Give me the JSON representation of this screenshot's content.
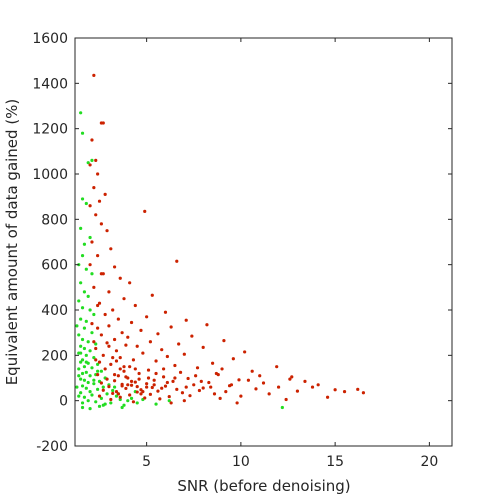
{
  "chart_data": {
    "type": "scatter",
    "title": "",
    "xlabel": "SNR (before denoising)",
    "ylabel": "Equivalent amount of data gained (%)",
    "xlim": [
      1.2,
      21.2
    ],
    "ylim": [
      -200,
      1600
    ],
    "x_ticks": [
      5,
      10,
      15,
      20
    ],
    "y_ticks": [
      -200,
      0,
      200,
      400,
      600,
      800,
      1000,
      1200,
      1400,
      1600
    ],
    "grid": false,
    "legend": "none",
    "series": [
      {
        "color": "#22dd22",
        "points": [
          [
            1.5,
            1270
          ],
          [
            1.6,
            1180
          ],
          [
            1.9,
            1050
          ],
          [
            2.1,
            1060
          ],
          [
            1.6,
            890
          ],
          [
            1.8,
            870
          ],
          [
            1.5,
            760
          ],
          [
            1.7,
            690
          ],
          [
            2.0,
            720
          ],
          [
            1.6,
            640
          ],
          [
            1.4,
            600
          ],
          [
            1.8,
            580
          ],
          [
            2.1,
            560
          ],
          [
            1.5,
            520
          ],
          [
            1.7,
            480
          ],
          [
            1.9,
            460
          ],
          [
            1.4,
            440
          ],
          [
            1.6,
            410
          ],
          [
            2.0,
            400
          ],
          [
            2.2,
            380
          ],
          [
            1.5,
            360
          ],
          [
            1.8,
            350
          ],
          [
            1.3,
            330
          ],
          [
            1.7,
            320
          ],
          [
            2.1,
            300
          ],
          [
            1.4,
            290
          ],
          [
            1.6,
            270
          ],
          [
            1.9,
            260
          ],
          [
            2.3,
            250
          ],
          [
            1.5,
            240
          ],
          [
            1.7,
            230
          ],
          [
            2.0,
            220
          ],
          [
            1.4,
            210
          ],
          [
            1.8,
            200
          ],
          [
            2.2,
            190
          ],
          [
            1.6,
            180
          ],
          [
            1.5,
            170
          ],
          [
            1.9,
            165
          ],
          [
            2.4,
            160
          ],
          [
            1.7,
            150
          ],
          [
            2.1,
            145
          ],
          [
            1.4,
            140
          ],
          [
            2.6,
            130
          ],
          [
            1.8,
            125
          ],
          [
            1.6,
            120
          ],
          [
            2.3,
            115
          ],
          [
            2.0,
            110
          ],
          [
            2.8,
            100
          ],
          [
            1.5,
            95
          ],
          [
            1.7,
            90
          ],
          [
            2.5,
            85
          ],
          [
            1.9,
            80
          ],
          [
            2.2,
            75
          ],
          [
            3.0,
            70
          ],
          [
            1.6,
            65
          ],
          [
            2.7,
            60
          ],
          [
            1.8,
            55
          ],
          [
            2.4,
            50
          ],
          [
            3.2,
            45
          ],
          [
            2.0,
            40
          ],
          [
            1.5,
            35
          ],
          [
            2.9,
            30
          ],
          [
            2.1,
            25
          ],
          [
            3.4,
            20
          ],
          [
            1.7,
            15
          ],
          [
            2.6,
            10
          ],
          [
            3.6,
            5
          ],
          [
            1.9,
            0
          ],
          [
            2.3,
            -5
          ],
          [
            3.1,
            -10
          ],
          [
            2.8,
            -15
          ],
          [
            3.8,
            -20
          ],
          [
            2.5,
            -25
          ],
          [
            1.6,
            -10
          ],
          [
            4.0,
            0
          ],
          [
            3.5,
            30
          ],
          [
            4.2,
            10
          ],
          [
            4.5,
            -10
          ],
          [
            3.3,
            60
          ],
          [
            2.2,
            90
          ],
          [
            1.4,
            110
          ],
          [
            1.3,
            60
          ],
          [
            1.4,
            20
          ],
          [
            1.6,
            -30
          ],
          [
            2.0,
            -35
          ],
          [
            4.8,
            5
          ],
          [
            5.5,
            -15
          ],
          [
            6.2,
            0
          ],
          [
            3.7,
            -30
          ],
          [
            2.4,
            130
          ],
          [
            1.8,
            170
          ],
          [
            1.5,
            210
          ],
          [
            2.7,
            -20
          ],
          [
            4.4,
            40
          ],
          [
            12.2,
            -30
          ]
        ]
      },
      {
        "color": "#cc2200",
        "points": [
          [
            2.2,
            1435
          ],
          [
            2.6,
            1225
          ],
          [
            2.7,
            1225
          ],
          [
            2.1,
            1150
          ],
          [
            2.3,
            1060
          ],
          [
            2.0,
            1040
          ],
          [
            2.4,
            1000
          ],
          [
            2.2,
            940
          ],
          [
            2.8,
            910
          ],
          [
            2.5,
            880
          ],
          [
            2.0,
            860
          ],
          [
            2.3,
            820
          ],
          [
            4.9,
            835
          ],
          [
            2.6,
            780
          ],
          [
            2.9,
            750
          ],
          [
            2.1,
            700
          ],
          [
            3.1,
            670
          ],
          [
            2.4,
            640
          ],
          [
            6.6,
            615
          ],
          [
            3.3,
            590
          ],
          [
            2.7,
            560
          ],
          [
            3.6,
            540
          ],
          [
            4.1,
            520
          ],
          [
            2.2,
            500
          ],
          [
            3.0,
            480
          ],
          [
            5.3,
            465
          ],
          [
            3.8,
            450
          ],
          [
            2.5,
            430
          ],
          [
            4.4,
            420
          ],
          [
            3.2,
            400
          ],
          [
            6.0,
            390
          ],
          [
            2.8,
            380
          ],
          [
            5.0,
            370
          ],
          [
            3.5,
            360
          ],
          [
            7.1,
            355
          ],
          [
            4.2,
            345
          ],
          [
            8.2,
            335
          ],
          [
            3.0,
            330
          ],
          [
            6.3,
            325
          ],
          [
            2.4,
            320
          ],
          [
            4.7,
            310
          ],
          [
            3.7,
            300
          ],
          [
            5.6,
            295
          ],
          [
            2.6,
            290
          ],
          [
            7.4,
            285
          ],
          [
            4.0,
            280
          ],
          [
            3.3,
            270
          ],
          [
            9.1,
            265
          ],
          [
            5.2,
            260
          ],
          [
            2.9,
            255
          ],
          [
            6.7,
            250
          ],
          [
            3.9,
            245
          ],
          [
            4.5,
            240
          ],
          [
            8.0,
            235
          ],
          [
            2.3,
            230
          ],
          [
            5.8,
            225
          ],
          [
            3.4,
            220
          ],
          [
            10.2,
            215
          ],
          [
            4.8,
            210
          ],
          [
            7.0,
            205
          ],
          [
            2.7,
            200
          ],
          [
            6.1,
            195
          ],
          [
            3.6,
            190
          ],
          [
            9.6,
            185
          ],
          [
            4.3,
            180
          ],
          [
            5.5,
            175
          ],
          [
            2.5,
            170
          ],
          [
            8.5,
            165
          ],
          [
            3.1,
            160
          ],
          [
            6.5,
            155
          ],
          [
            11.9,
            150
          ],
          [
            4.1,
            150
          ],
          [
            7.7,
            145
          ],
          [
            2.8,
            140
          ],
          [
            5.1,
            135
          ],
          [
            3.8,
            130
          ],
          [
            10.6,
            130
          ],
          [
            6.8,
            125
          ],
          [
            4.6,
            120
          ],
          [
            2.4,
            115
          ],
          [
            8.8,
            115
          ],
          [
            3.5,
            110
          ],
          [
            5.9,
            105
          ],
          [
            12.7,
            105
          ],
          [
            4.0,
            100
          ],
          [
            7.2,
            98
          ],
          [
            2.9,
            95
          ],
          [
            9.9,
            92
          ],
          [
            5.4,
            90
          ],
          [
            3.3,
            88
          ],
          [
            6.4,
            85
          ],
          [
            13.4,
            85
          ],
          [
            4.4,
            82
          ],
          [
            8.3,
            80
          ],
          [
            2.6,
            78
          ],
          [
            11.2,
            78
          ],
          [
            5.0,
            75
          ],
          [
            3.7,
            72
          ],
          [
            7.5,
            70
          ],
          [
            14.1,
            70
          ],
          [
            4.2,
            68
          ],
          [
            9.4,
            66
          ],
          [
            6.0,
            64
          ],
          [
            3.0,
            62
          ],
          [
            12.0,
            60
          ],
          [
            5.3,
            58
          ],
          [
            8.0,
            56
          ],
          [
            3.9,
            54
          ],
          [
            10.8,
            52
          ],
          [
            6.6,
            50
          ],
          [
            4.7,
            48
          ],
          [
            15.0,
            48
          ],
          [
            2.7,
            46
          ],
          [
            7.8,
            45
          ],
          [
            5.6,
            42
          ],
          [
            13.0,
            42
          ],
          [
            3.4,
            40
          ],
          [
            9.2,
            40
          ],
          [
            4.5,
            38
          ],
          [
            6.9,
            35
          ],
          [
            16.5,
            35
          ],
          [
            3.2,
            32
          ],
          [
            8.6,
            30
          ],
          [
            11.5,
            30
          ],
          [
            5.2,
            28
          ],
          [
            4.1,
            25
          ],
          [
            7.3,
            22
          ],
          [
            2.5,
            20
          ],
          [
            10.0,
            20
          ],
          [
            6.2,
            18
          ],
          [
            3.6,
            15
          ],
          [
            14.6,
            15
          ],
          [
            4.9,
            12
          ],
          [
            8.9,
            10
          ],
          [
            5.7,
            8
          ],
          [
            3.1,
            5
          ],
          [
            12.4,
            5
          ],
          [
            7.0,
            0
          ],
          [
            4.3,
            -5
          ],
          [
            6.3,
            -10
          ],
          [
            9.8,
            -10
          ],
          [
            3.8,
            150
          ],
          [
            4.6,
            95
          ],
          [
            5.0,
            60
          ],
          [
            3.5,
            30
          ],
          [
            4.0,
            70
          ],
          [
            3.3,
            115
          ],
          [
            4.8,
            40
          ],
          [
            5.5,
            120
          ],
          [
            6.1,
            80
          ],
          [
            3.7,
            65
          ],
          [
            4.4,
            140
          ],
          [
            5.8,
            55
          ],
          [
            7.6,
            110
          ],
          [
            8.4,
            60
          ],
          [
            9.0,
            140
          ],
          [
            10.4,
            90
          ],
          [
            11.0,
            110
          ],
          [
            12.6,
            95
          ],
          [
            13.8,
            60
          ],
          [
            15.5,
            40
          ],
          [
            16.2,
            50
          ],
          [
            2.3,
            180
          ],
          [
            2.2,
            260
          ],
          [
            2.1,
            340
          ],
          [
            2.4,
            420
          ],
          [
            2.0,
            600
          ],
          [
            2.6,
            560
          ],
          [
            3.0,
            240
          ],
          [
            3.2,
            190
          ],
          [
            3.4,
            175
          ],
          [
            3.6,
            140
          ],
          [
            3.9,
            105
          ],
          [
            4.2,
            85
          ],
          [
            4.5,
            62
          ],
          [
            4.7,
            30
          ],
          [
            5.1,
            100
          ],
          [
            5.4,
            70
          ],
          [
            5.9,
            140
          ],
          [
            6.5,
            100
          ],
          [
            7.1,
            60
          ],
          [
            7.9,
            85
          ],
          [
            8.7,
            120
          ],
          [
            9.5,
            70
          ]
        ]
      }
    ]
  }
}
